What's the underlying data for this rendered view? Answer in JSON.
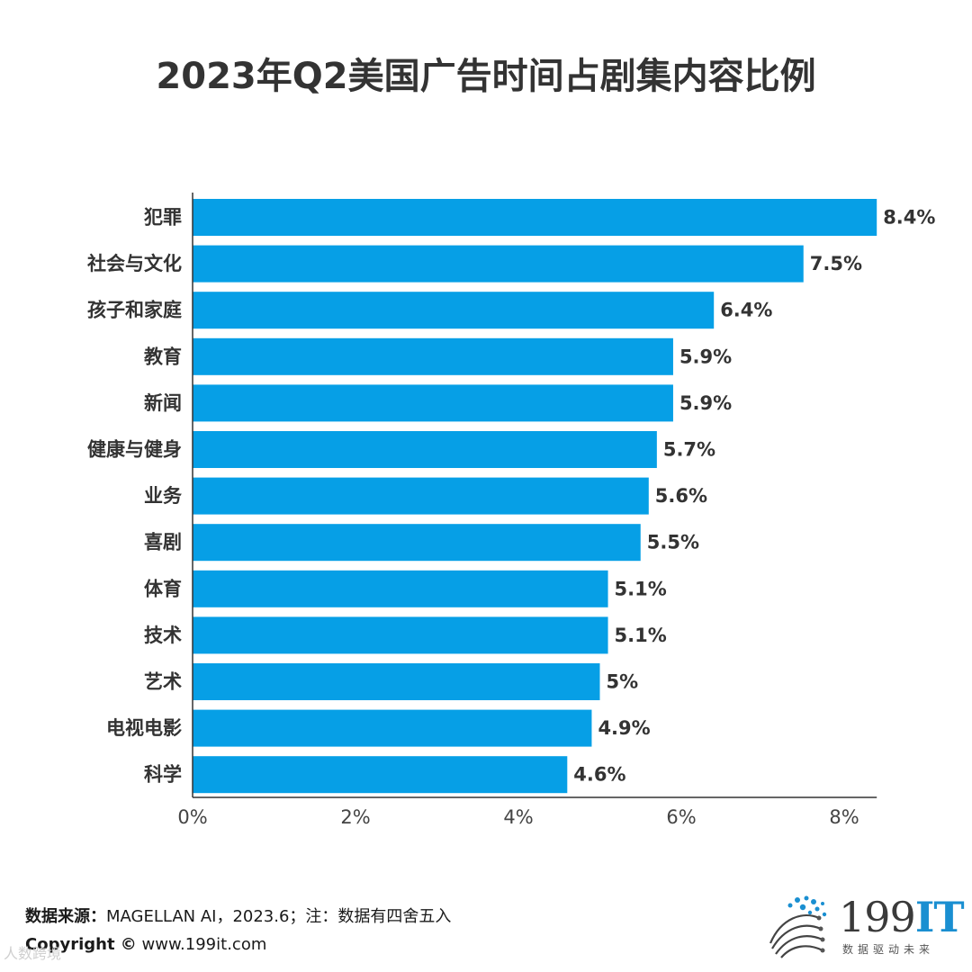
{
  "chart_data": {
    "type": "bar",
    "orientation": "horizontal",
    "title": "2023年Q2美国广告时间占剧集内容比例",
    "categories": [
      "犯罪",
      "社会与文化",
      "孩子和家庭",
      "教育",
      "新闻",
      "健康与健身",
      "业务",
      "喜剧",
      "体育",
      "技术",
      "艺术",
      "电视电影",
      "科学"
    ],
    "values": [
      8.4,
      7.5,
      6.4,
      5.9,
      5.9,
      5.7,
      5.6,
      5.5,
      5.1,
      5.1,
      5,
      4.9,
      4.6
    ],
    "value_labels": [
      "8.4%",
      "7.5%",
      "6.4%",
      "5.9%",
      "5.9%",
      "5.7%",
      "5.6%",
      "5.5%",
      "5.1%",
      "5.1%",
      "5%",
      "4.9%",
      "4.6%"
    ],
    "x_ticks": [
      0,
      2,
      4,
      6,
      8
    ],
    "x_tick_labels": [
      "0%",
      "2%",
      "4%",
      "6%",
      "8%"
    ],
    "xlim": [
      0,
      8.4
    ],
    "xlabel": "",
    "ylabel": "",
    "grid": false,
    "bar_color": "#069fe6"
  },
  "footer": {
    "source_label": "数据来源：",
    "source_text": "MAGELLAN AI，2023.6；注：数据有四舍五入",
    "copyright_label": "Copyright ©",
    "copyright_text": "www.199it.com"
  },
  "watermark": "人数跨境",
  "logo": {
    "number": "199",
    "letters": "IT",
    "slogan": "数据驱动未来"
  }
}
